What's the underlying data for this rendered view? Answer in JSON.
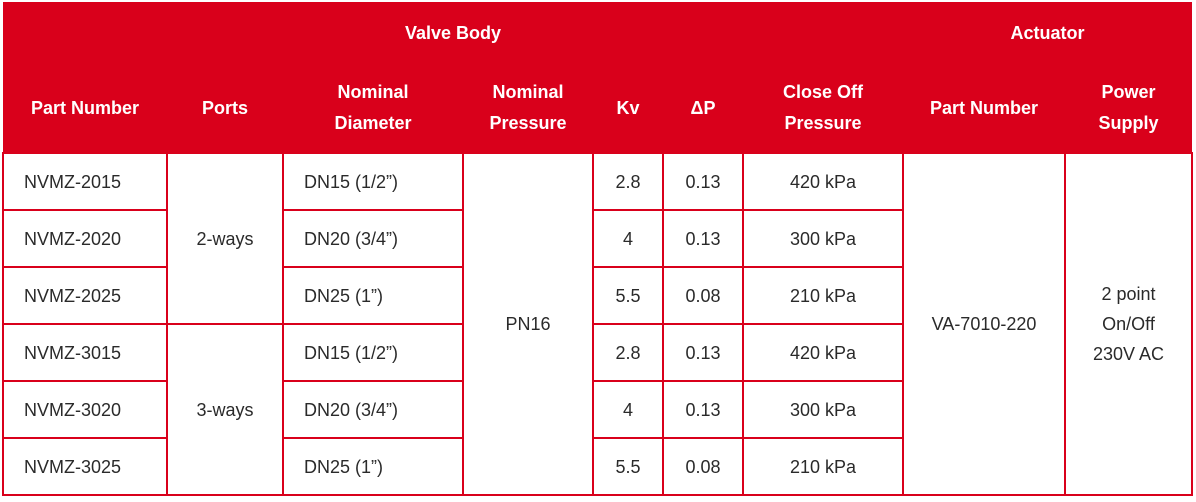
{
  "groups": {
    "valve_body": "Valve Body",
    "actuator": "Actuator"
  },
  "headers": {
    "part_number": "Part Number",
    "ports": "Ports",
    "nominal_diameter_1": "Nominal",
    "nominal_diameter_2": "Diameter",
    "nominal_pressure_1": "Nominal",
    "nominal_pressure_2": "Pressure",
    "kv": "Kv",
    "dp": "ΔP",
    "close_off_1": "Close Off",
    "close_off_2": "Pressure",
    "actuator_part_number": "Part Number",
    "power_supply_1": "Power",
    "power_supply_2": "Supply"
  },
  "ports": [
    "2-ways",
    "3-ways"
  ],
  "nominal_pressure": "PN16",
  "actuator_part": "VA-7010-220",
  "power_supply": [
    "2 point",
    "On/Off",
    "230V AC"
  ],
  "rows": [
    {
      "part": "NVMZ-2015",
      "diameter": "DN15  (1/2”)",
      "kv": "2.8",
      "dp": "0.13",
      "close_off": "420 kPa"
    },
    {
      "part": "NVMZ-2020",
      "diameter": "DN20  (3/4”)",
      "kv": "4",
      "dp": "0.13",
      "close_off": "300 kPa"
    },
    {
      "part": "NVMZ-2025",
      "diameter": "DN25  (1”)",
      "kv": "5.5",
      "dp": "0.08",
      "close_off": "210 kPa"
    },
    {
      "part": "NVMZ-3015",
      "diameter": "DN15  (1/2”)",
      "kv": "2.8",
      "dp": "0.13",
      "close_off": "420 kPa"
    },
    {
      "part": "NVMZ-3020",
      "diameter": "DN20  (3/4”)",
      "kv": "4",
      "dp": "0.13",
      "close_off": "300 kPa"
    },
    {
      "part": "NVMZ-3025",
      "diameter": "DN25  (1”)",
      "kv": "5.5",
      "dp": "0.08",
      "close_off": "210 kPa"
    }
  ]
}
